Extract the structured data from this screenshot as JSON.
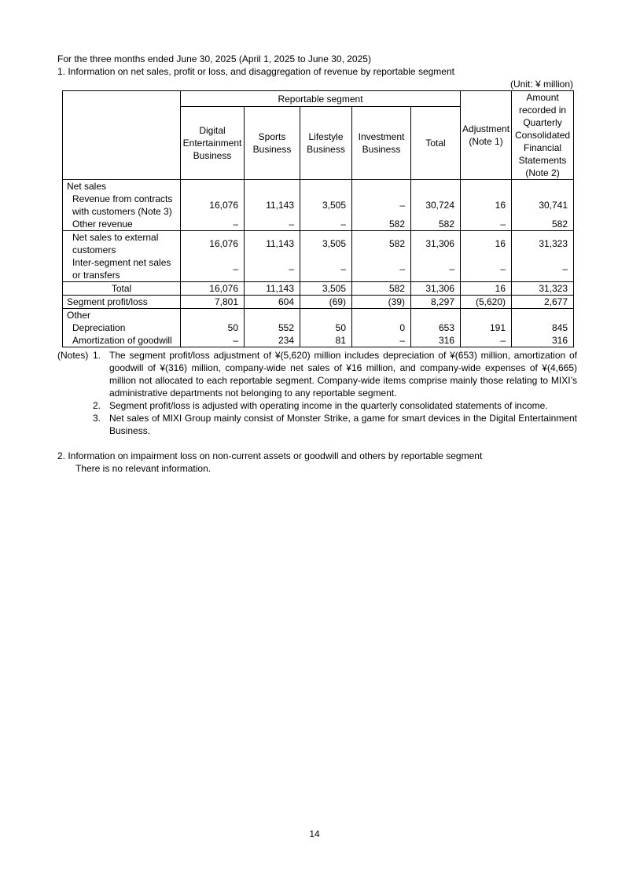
{
  "intro": {
    "period": "For the three months ended June 30, 2025 (April 1, 2025 to June 30, 2025)",
    "section1_title": "1. Information on net sales, profit or loss, and disaggregation of revenue by reportable segment",
    "unit": "(Unit: ¥ million)"
  },
  "table": {
    "group_header": "Reportable segment",
    "columns": [
      "Digital Entertainment Business",
      "Sports Business",
      "Lifestyle Business",
      "Investment Business",
      "Total",
      "Adjustment (Note 1)",
      "Amount recorded in Quarterly Consolidated Financial Statements (Note 2)"
    ],
    "rows": [
      {
        "label": "Net sales",
        "values": [
          "",
          "",
          "",
          "",
          "",
          "",
          ""
        ]
      },
      {
        "label": "Revenue from contracts with customers (Note 3)",
        "values": [
          "16,076",
          "11,143",
          "3,505",
          "–",
          "30,724",
          "16",
          "30,741"
        ]
      },
      {
        "label": "Other revenue",
        "values": [
          "–",
          "–",
          "–",
          "582",
          "582",
          "–",
          "582"
        ]
      },
      {
        "label": "Net sales to external customers",
        "values": [
          "16,076",
          "11,143",
          "3,505",
          "582",
          "31,306",
          "16",
          "31,323"
        ]
      },
      {
        "label": "Inter-segment net sales or transfers",
        "values": [
          "–",
          "–",
          "–",
          "–",
          "–",
          "–",
          "–"
        ]
      },
      {
        "label": "Total",
        "values": [
          "16,076",
          "11,143",
          "3,505",
          "582",
          "31,306",
          "16",
          "31,323"
        ]
      },
      {
        "label": "Segment profit/loss",
        "values": [
          "7,801",
          "604",
          "(69)",
          "(39)",
          "8,297",
          "(5,620)",
          "2,677"
        ]
      },
      {
        "label": "Other",
        "values": [
          "",
          "",
          "",
          "",
          "",
          "",
          ""
        ]
      },
      {
        "label": "Depreciation",
        "values": [
          "50",
          "552",
          "50",
          "0",
          "653",
          "191",
          "845"
        ]
      },
      {
        "label": "Amortization of goodwill",
        "values": [
          "–",
          "234",
          "81",
          "–",
          "316",
          "–",
          "316"
        ]
      }
    ]
  },
  "notes": {
    "lead": "(Notes)",
    "items": [
      {
        "num": "1.",
        "text": "The segment profit/loss adjustment of ¥(5,620) million includes depreciation of ¥(653) million, amortization of goodwill of ¥(316) million, company-wide net sales of ¥16 million, and company-wide expenses of ¥(4,665) million not allocated to each reportable segment. Company-wide items comprise mainly those relating to MIXI’s administrative departments not belonging to any reportable segment."
      },
      {
        "num": "2.",
        "text": "Segment profit/loss is adjusted with operating income in the quarterly consolidated statements of income."
      },
      {
        "num": "3.",
        "text": "Net sales of MIXI Group mainly consist of Monster Strike, a game for smart devices in the Digital Entertainment Business."
      }
    ]
  },
  "section2": {
    "title": "2. Information on impairment loss on non-current assets or goodwill and others by reportable segment",
    "body": "There is no relevant information."
  },
  "page_number": "14"
}
